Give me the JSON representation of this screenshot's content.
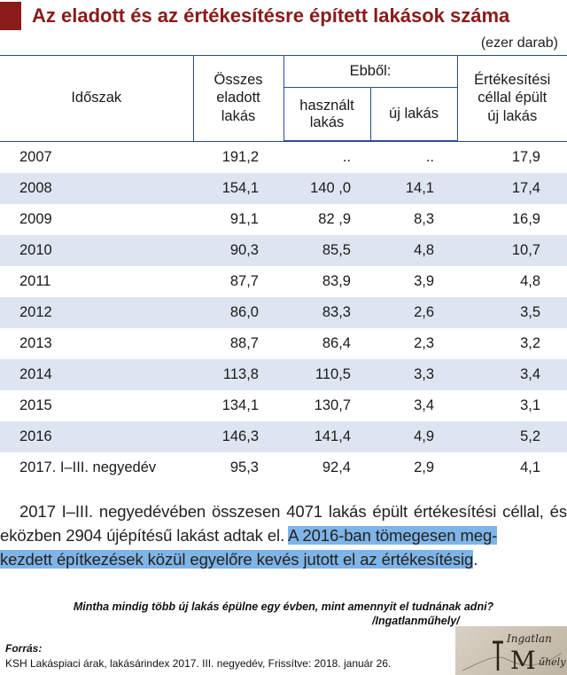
{
  "title": "Az eladott és az értékesítésre épített lakások száma",
  "unit": "(ezer darab)",
  "headers": {
    "period": "Időszak",
    "total": [
      "Összes",
      "eladott",
      "lakás"
    ],
    "ebbol": "Ebből:",
    "used": [
      "használt",
      "lakás"
    ],
    "new": "új lakás",
    "built": [
      "Értékesítési",
      "céllal épült",
      "új lakás"
    ]
  },
  "rows": [
    {
      "period": "2007",
      "total": "191,2",
      "used": "..",
      "new": "..",
      "built": "17,9"
    },
    {
      "period": "2008",
      "total": "154,1",
      "used": "140 ,0",
      "new": "14,1",
      "built": "17,4"
    },
    {
      "period": "2009",
      "total": "91,1",
      "used": "82 ,9",
      "new": "8,3",
      "built": "16,9"
    },
    {
      "period": "2010",
      "total": "90,3",
      "used": "85,5",
      "new": "4,8",
      "built": "10,7"
    },
    {
      "period": "2011",
      "total": "87,7",
      "used": "83,9",
      "new": "3,9",
      "built": "4,8"
    },
    {
      "period": "2012",
      "total": "86,0",
      "used": "83,3",
      "new": "2,6",
      "built": "3,5"
    },
    {
      "period": "2013",
      "total": "88,7",
      "used": "86,4",
      "new": "2,3",
      "built": "3,2"
    },
    {
      "period": "2014",
      "total": "113,8",
      "used": "110,5",
      "new": "3,3",
      "built": "3,4"
    },
    {
      "period": "2015",
      "total": "134,1",
      "used": "130,7",
      "new": "3,4",
      "built": "3,1"
    },
    {
      "period": "2016",
      "total": "146,3",
      "used": "141,4",
      "new": "4,9",
      "built": "5,2"
    },
    {
      "period": "2017. I–III. negyedév",
      "total": "95,3",
      "used": "92,4",
      "new": "2,9",
      "built": "4,1"
    }
  ],
  "paragraph": {
    "plain": "2017 I–III. negyedévében összesen 4071 lakás épült értékesítési céllal, és eközben 2904 újépítésű lakást adtak el. ",
    "highlight_1": "A 2016-ban tömegesen meg-",
    "highlight_2": "kezdett építkezések közül egyelőre kevés jutott el az értékesítésig",
    "end": "."
  },
  "quote": {
    "text": "Mintha mindig több új lakás épülne egy évben, mint amennyit el tudnának adni?",
    "author": "/Ingatlanműhely/"
  },
  "source": {
    "label": "Forrás:",
    "text": "KSH Lakáspiaci árak, lakásárindex 2017. III. negyedév, Frissítve: 2018. január 26."
  },
  "logo_text": [
    "Ingatlan",
    "M",
    "űhely"
  ],
  "colors": {
    "title": "#8b1a1a",
    "rule": "#2a4d8f",
    "row_band": "#dde5f1",
    "highlight": "#7fb4e6"
  }
}
